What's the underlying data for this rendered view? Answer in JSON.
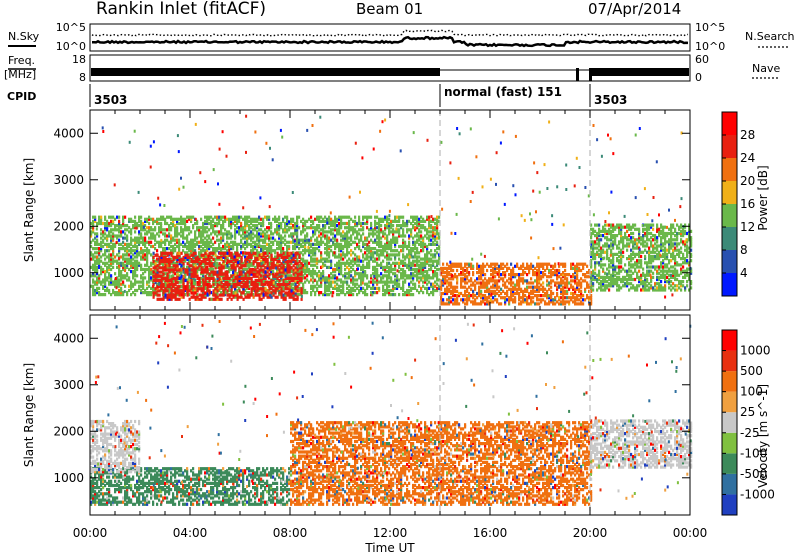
{
  "header": {
    "station": "Rankin Inlet (fitACF)",
    "beam": "Beam 01",
    "date": "07/Apr/2014"
  },
  "strip": {
    "nsky_label": "N.Sky",
    "nsky_top": "10^5",
    "nsky_bottom": "10^0",
    "nsearch_label": "N.Search",
    "nsearch_top": "10^5",
    "nsearch_bottom": "10^0",
    "freq_label": "Freq.",
    "freq_unit": "[MHz]",
    "freq_top": "18",
    "freq_bottom": "8",
    "nave_label": "Nave",
    "nave_top": "60",
    "nave_bottom": "0",
    "cpid_label": "CPID",
    "cpid_segments": [
      {
        "label": "3503",
        "start_hr": 0
      },
      {
        "label": "normal (fast) 151",
        "start_hr": 14
      },
      {
        "label": "3503",
        "start_hr": 20
      }
    ]
  },
  "chart_data": [
    {
      "type": "heatmap",
      "name": "power",
      "ylabel": "Slant Range [km]",
      "xlabel": "",
      "x_range_hours": [
        0,
        24
      ],
      "ylim_km": [
        200,
        4500
      ],
      "y_ticks": [
        1000,
        2000,
        3000,
        4000
      ],
      "colorbar": {
        "label": "Power [dB]",
        "ticks": [
          "4",
          "8",
          "12",
          "16",
          "20",
          "24",
          "28"
        ],
        "colors": [
          "#0018ff",
          "#2850b0",
          "#3c8a78",
          "#6ab84a",
          "#f0b018",
          "#f07010",
          "#e82010",
          "#ff0000"
        ]
      },
      "features": [
        {
          "desc_start_hr": 0.0,
          "desc_end_hr": 14.0,
          "range_min": 500,
          "range_max": 2200,
          "color": "#6ab84a"
        },
        {
          "desc_start_hr": 2.5,
          "desc_end_hr": 8.5,
          "range_min": 400,
          "range_max": 1400,
          "color": "#e82010"
        },
        {
          "desc_start_hr": 14.0,
          "desc_end_hr": 20.0,
          "range_min": 300,
          "range_max": 1200,
          "color": "#f07010"
        },
        {
          "desc_start_hr": 20.0,
          "desc_end_hr": 24.0,
          "range_min": 600,
          "range_max": 2000,
          "color": "#6ab84a"
        }
      ]
    },
    {
      "type": "heatmap",
      "name": "velocity",
      "ylabel": "Slant Range [km]",
      "xlabel": "Time UT",
      "x_range_hours": [
        0,
        24
      ],
      "x_ticks": [
        "00:00",
        "04:00",
        "08:00",
        "12:00",
        "16:00",
        "20:00",
        "00:00"
      ],
      "ylim_km": [
        200,
        4500
      ],
      "y_ticks": [
        1000,
        2000,
        3000,
        4000
      ],
      "colorbar": {
        "label": "Velocity [m s^-1]",
        "ticks": [
          "1000",
          "500",
          "100",
          "25",
          "-25",
          "-100",
          "-500",
          "-1000"
        ],
        "colors": [
          "#2040c0",
          "#3070a0",
          "#3c8a5a",
          "#80c040",
          "#c8c8c8",
          "#f0a040",
          "#f07010",
          "#e83010",
          "#ff0000"
        ]
      },
      "features": [
        {
          "desc_start_hr": 0.0,
          "desc_end_hr": 8.0,
          "range_min": 400,
          "range_max": 1200,
          "color": "#3c8a5a"
        },
        {
          "desc_start_hr": 0.0,
          "desc_end_hr": 2.0,
          "range_min": 1100,
          "range_max": 2200,
          "color": "#c8c8c8"
        },
        {
          "desc_start_hr": 8.0,
          "desc_end_hr": 20.0,
          "range_min": 400,
          "range_max": 2200,
          "color": "#f07010"
        },
        {
          "desc_start_hr": 20.0,
          "desc_end_hr": 24.0,
          "range_min": 1200,
          "range_max": 2200,
          "color": "#c8c8c8"
        }
      ]
    }
  ]
}
